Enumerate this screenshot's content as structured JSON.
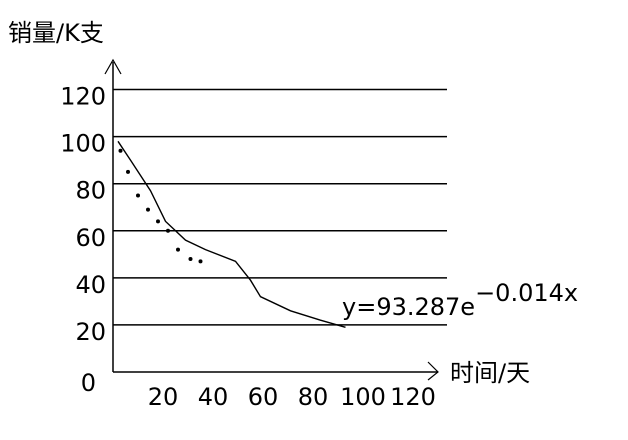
{
  "chart_data": {
    "type": "line",
    "y_label": "销量/K支",
    "x_label": "时间/天",
    "annotation": {
      "base": "y=93.287e",
      "exponent": "−0.014x"
    },
    "xlim": [
      0,
      130
    ],
    "ylim": [
      0,
      130
    ],
    "xticks": [
      20,
      40,
      60,
      80,
      100,
      120
    ],
    "yticks": [
      0,
      20,
      40,
      60,
      80,
      100,
      120
    ],
    "grid": true,
    "series": [
      {
        "color": "#000000",
        "style": "solid",
        "x": [
          2,
          7,
          15,
          21,
          29,
          37,
          49,
          55,
          59,
          71,
          83,
          93
        ],
        "values": [
          98,
          90,
          77,
          64,
          56,
          52,
          47,
          39,
          32,
          26,
          22,
          19
        ]
      },
      {
        "color": "#000000",
        "style": "dotted",
        "x": [
          3,
          6,
          10,
          14,
          18,
          22,
          26,
          31,
          35
        ],
        "values": [
          94,
          85,
          75,
          69,
          64,
          60,
          52,
          48,
          47
        ]
      }
    ]
  }
}
